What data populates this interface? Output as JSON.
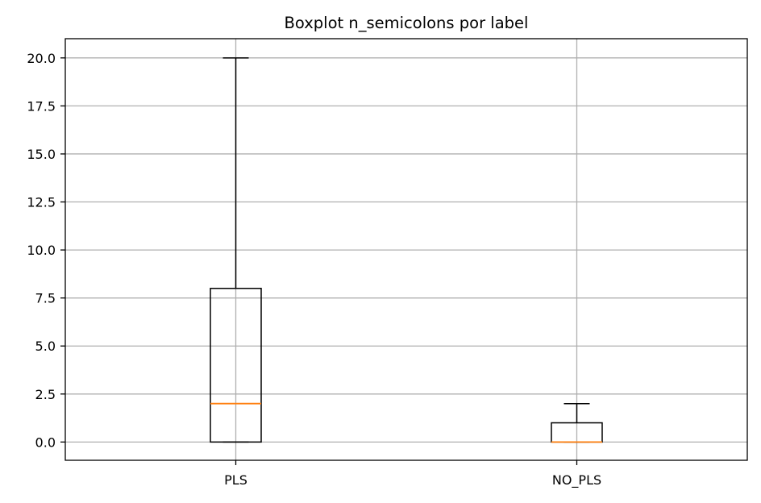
{
  "chart_data": {
    "type": "boxplot",
    "title": "Boxplot n_semicolons por label",
    "xlabel": "",
    "ylabel": "",
    "ylim": [
      -0.95,
      21.0
    ],
    "yticks": [
      0.0,
      2.5,
      5.0,
      7.5,
      10.0,
      12.5,
      15.0,
      17.5,
      20.0
    ],
    "ytick_labels": [
      "0.0",
      "2.5",
      "5.0",
      "7.5",
      "10.0",
      "12.5",
      "15.0",
      "17.5",
      "20.0"
    ],
    "categories": [
      "PLS",
      "NO_PLS"
    ],
    "boxes": [
      {
        "label": "PLS",
        "whisker_low": 0,
        "q1": 0,
        "median": 2,
        "q3": 8,
        "whisker_high": 20
      },
      {
        "label": "NO_PLS",
        "whisker_low": 0,
        "q1": 0,
        "median": 0,
        "q3": 1,
        "whisker_high": 2
      }
    ],
    "grid": true,
    "colors": {
      "box": "#000000",
      "median": "#ff7f0e",
      "grid": "#b0b0b0",
      "axes": "#000000"
    }
  }
}
